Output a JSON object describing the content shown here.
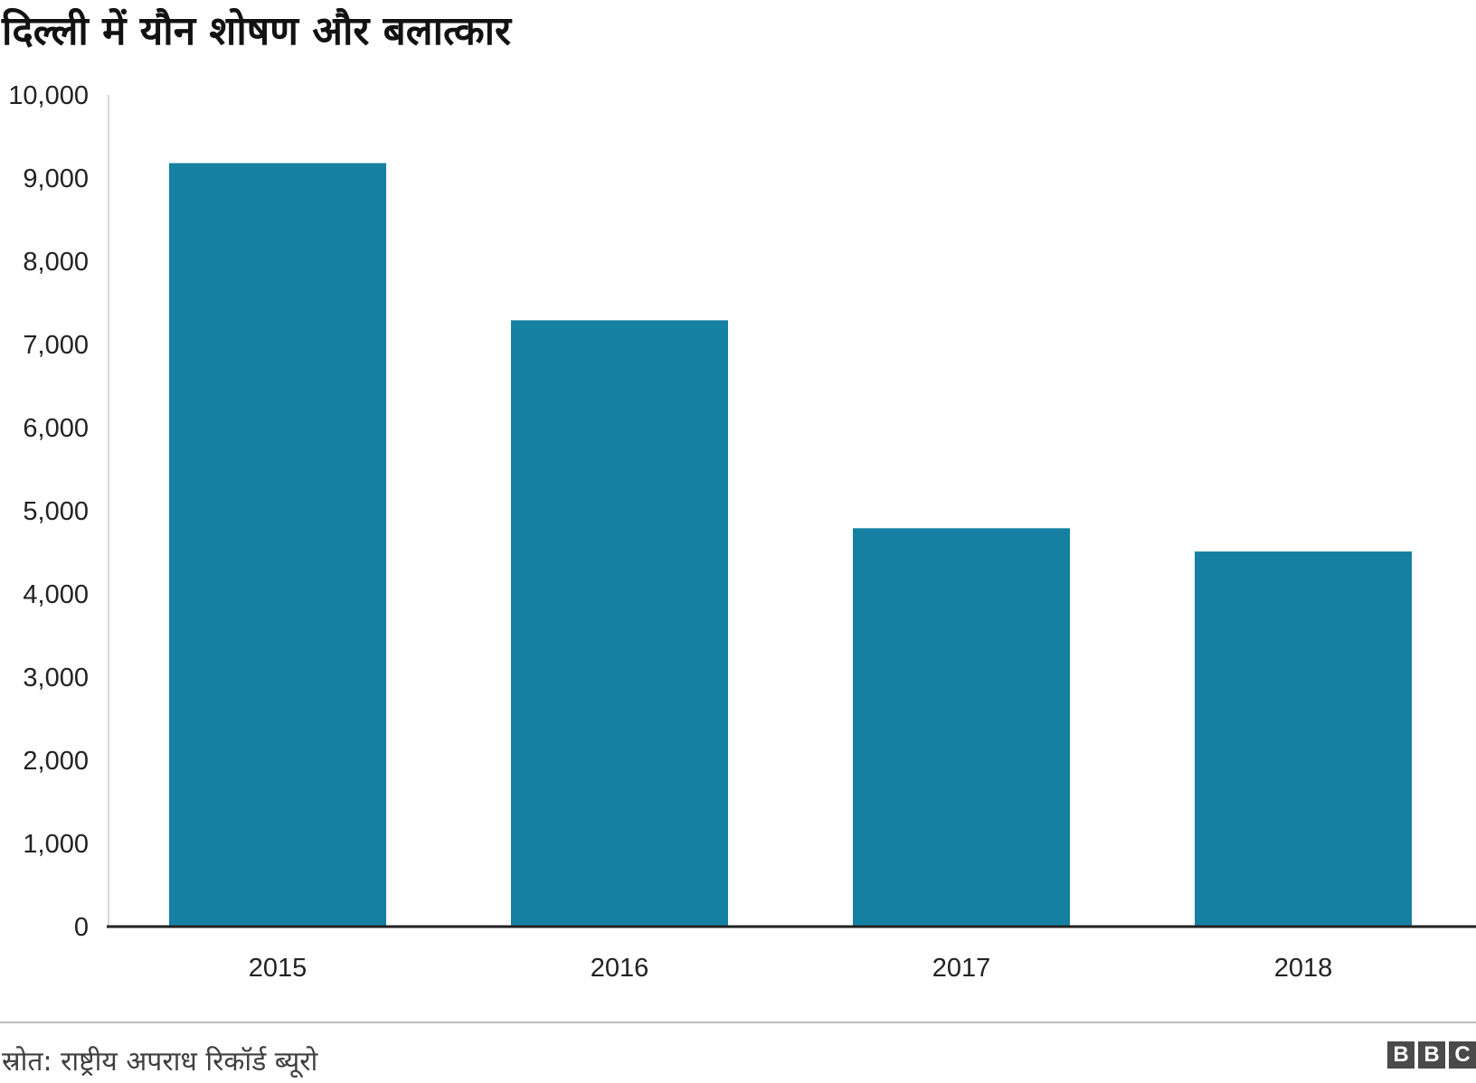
{
  "chart_data": {
    "type": "bar",
    "title": "दिल्ली में यौन शोषण और बलात्कार",
    "categories": [
      "2015",
      "2016",
      "2017",
      "2018"
    ],
    "values": [
      9180,
      7290,
      4790,
      4510
    ],
    "ylim": [
      0,
      10000
    ],
    "yticks": [
      "0",
      "1,000",
      "2,000",
      "3,000",
      "4,000",
      "5,000",
      "6,000",
      "7,000",
      "8,000",
      "9,000",
      "10,000"
    ],
    "ytick_values": [
      0,
      1000,
      2000,
      3000,
      4000,
      5000,
      6000,
      7000,
      8000,
      9000,
      10000
    ],
    "grid": false,
    "bar_color": "#1680a2"
  },
  "footer": {
    "source": "स्रोत: राष्ट्रीय अपराध रिकॉर्ड ब्यूरो",
    "logo_letters": [
      "B",
      "B",
      "C"
    ]
  }
}
